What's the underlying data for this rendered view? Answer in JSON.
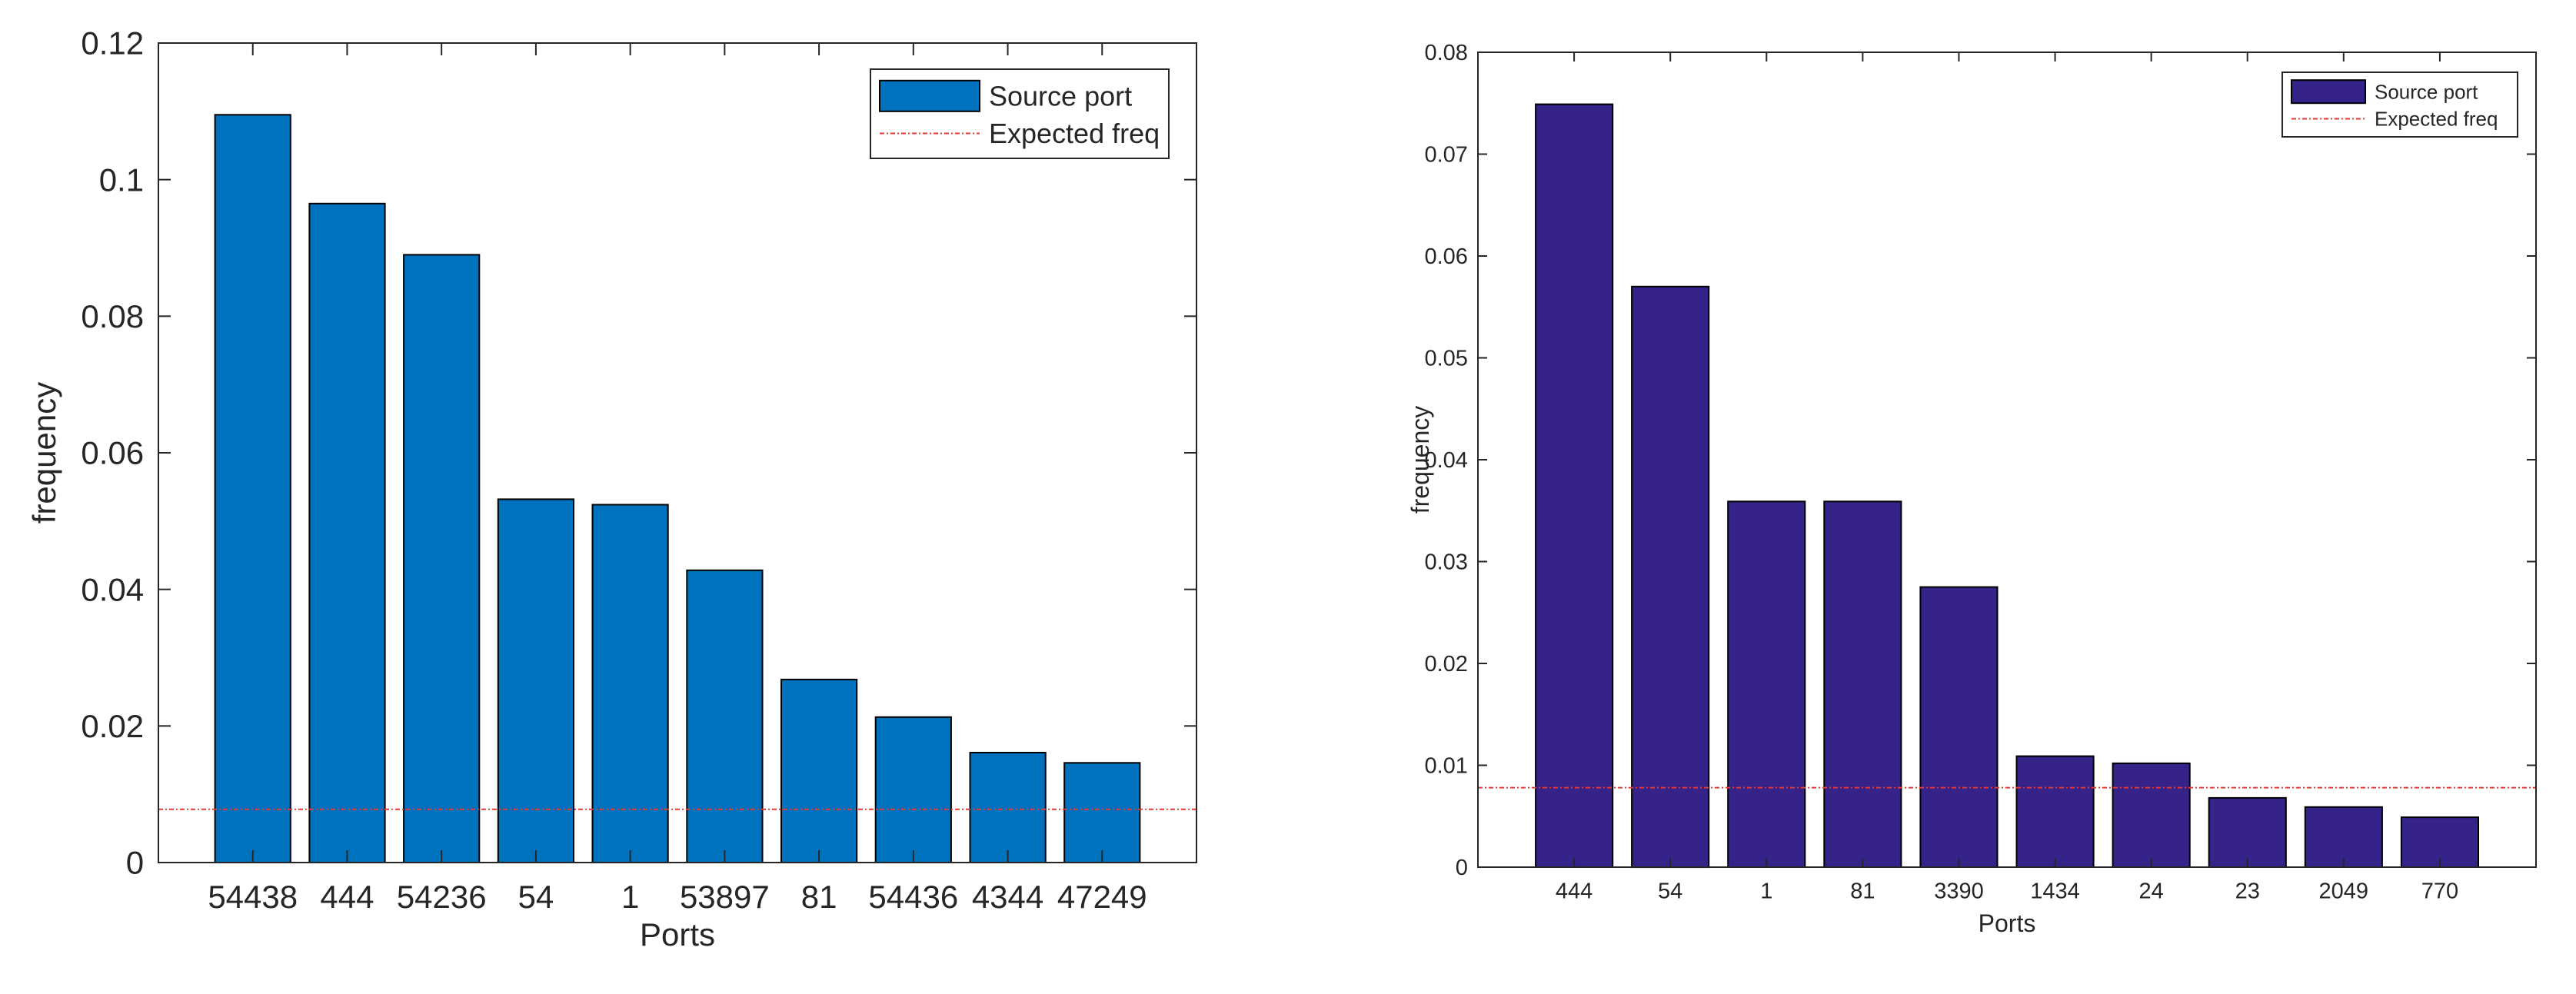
{
  "chart_data": [
    {
      "type": "bar",
      "title": "",
      "xlabel": "Ports",
      "ylabel": "frequency",
      "categories": [
        "54438",
        "444",
        "54236",
        "54",
        "1",
        "53897",
        "81",
        "54436",
        "4344",
        "47249"
      ],
      "series": [
        {
          "name": "Source port",
          "values": [
            0.1095,
            0.0965,
            0.089,
            0.0532,
            0.0524,
            0.0428,
            0.0268,
            0.0213,
            0.0161,
            0.0146
          ]
        }
      ],
      "reference_line": {
        "name": "Expected freq",
        "value": 0.0078
      },
      "ylim": [
        0,
        0.12
      ],
      "yticks": [
        0,
        0.02,
        0.04,
        0.06,
        0.08,
        0.1,
        0.12
      ],
      "ytick_labels": [
        "0",
        "0.02",
        "0.04",
        "0.06",
        "0.08",
        "0.1",
        "0.12"
      ],
      "legend_position": "top-right",
      "colors": {
        "bar": "#0072BD",
        "line": "#E53935"
      }
    },
    {
      "type": "bar",
      "title": "",
      "xlabel": "Ports",
      "ylabel": "frequency",
      "categories": [
        "444",
        "54",
        "1",
        "81",
        "3390",
        "1434",
        "24",
        "23",
        "2049",
        "770"
      ],
      "series": [
        {
          "name": "Source port",
          "values": [
            0.0749,
            0.057,
            0.0359,
            0.0359,
            0.0275,
            0.0109,
            0.0102,
            0.0068,
            0.0059,
            0.0049
          ]
        }
      ],
      "reference_line": {
        "name": "Expected freq",
        "value": 0.0078
      },
      "ylim": [
        0,
        0.08
      ],
      "yticks": [
        0,
        0.01,
        0.02,
        0.03,
        0.04,
        0.05,
        0.06,
        0.07,
        0.08
      ],
      "ytick_labels": [
        "0",
        "0.01",
        "0.02",
        "0.03",
        "0.04",
        "0.05",
        "0.06",
        "0.07",
        "0.08"
      ],
      "legend_position": "top-right",
      "colors": {
        "bar": "#35238A",
        "line": "#E53935"
      }
    }
  ]
}
